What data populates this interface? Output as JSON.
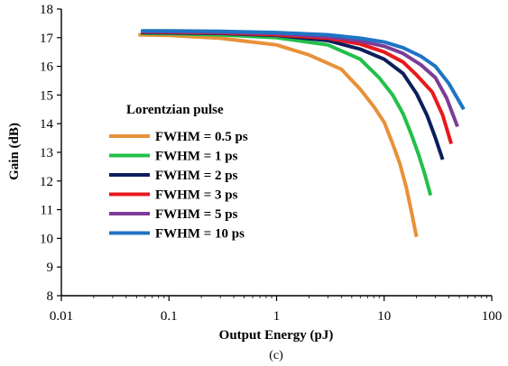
{
  "chart_data": {
    "type": "line",
    "title": "",
    "xlabel": "Output Energy (pJ)",
    "ylabel": "Gain (dB)",
    "x_scale": "log",
    "xlim": [
      0.01,
      100
    ],
    "ylim": [
      8,
      18
    ],
    "x_ticks": [
      "0.01",
      "0.1",
      "1",
      "10",
      "100"
    ],
    "y_ticks": [
      "8",
      "9",
      "10",
      "11",
      "12",
      "13",
      "14",
      "15",
      "16",
      "17",
      "18"
    ],
    "grid": false,
    "legend_title": "Lorentzian pulse",
    "legend_placement": "center-left",
    "caption": "(c)",
    "series": [
      {
        "name": "FWHM = 0.5 ps",
        "color": "#e8913a",
        "points": [
          [
            0.052,
            17.1
          ],
          [
            0.1,
            17.08
          ],
          [
            0.3,
            16.98
          ],
          [
            1,
            16.75
          ],
          [
            2,
            16.4
          ],
          [
            4,
            15.9
          ],
          [
            6,
            15.2
          ],
          [
            8,
            14.6
          ],
          [
            10,
            14.05
          ],
          [
            12,
            13.3
          ],
          [
            14,
            12.6
          ],
          [
            16,
            11.8
          ],
          [
            18,
            10.9
          ],
          [
            20,
            10.05
          ]
        ]
      },
      {
        "name": "FWHM = 1 ps",
        "color": "#22c04a",
        "points": [
          [
            0.055,
            17.15
          ],
          [
            0.1,
            17.14
          ],
          [
            0.3,
            17.1
          ],
          [
            1,
            17.0
          ],
          [
            3,
            16.75
          ],
          [
            6,
            16.25
          ],
          [
            9,
            15.6
          ],
          [
            12,
            15.0
          ],
          [
            15,
            14.35
          ],
          [
            18,
            13.6
          ],
          [
            21,
            12.9
          ],
          [
            24,
            12.2
          ],
          [
            27,
            11.5
          ]
        ]
      },
      {
        "name": "FWHM = 2 ps",
        "color": "#0c1f5c",
        "points": [
          [
            0.055,
            17.18
          ],
          [
            0.1,
            17.17
          ],
          [
            0.3,
            17.15
          ],
          [
            1,
            17.08
          ],
          [
            3,
            16.9
          ],
          [
            6,
            16.6
          ],
          [
            10,
            16.25
          ],
          [
            15,
            15.75
          ],
          [
            20,
            15.05
          ],
          [
            25,
            14.3
          ],
          [
            30,
            13.5
          ],
          [
            35,
            12.75
          ]
        ]
      },
      {
        "name": "FWHM = 3 ps",
        "color": "#e8191c",
        "points": [
          [
            0.055,
            17.2
          ],
          [
            0.1,
            17.19
          ],
          [
            0.3,
            17.17
          ],
          [
            1,
            17.1
          ],
          [
            3,
            16.98
          ],
          [
            6,
            16.78
          ],
          [
            10,
            16.5
          ],
          [
            15,
            16.15
          ],
          [
            20,
            15.7
          ],
          [
            28,
            15.1
          ],
          [
            35,
            14.3
          ],
          [
            42,
            13.3
          ]
        ]
      },
      {
        "name": "FWHM = 5 ps",
        "color": "#7d3c98",
        "points": [
          [
            0.055,
            17.22
          ],
          [
            0.1,
            17.21
          ],
          [
            0.3,
            17.19
          ],
          [
            1,
            17.14
          ],
          [
            3,
            17.03
          ],
          [
            6,
            16.88
          ],
          [
            10,
            16.7
          ],
          [
            15,
            16.45
          ],
          [
            22,
            16.05
          ],
          [
            30,
            15.6
          ],
          [
            38,
            14.9
          ],
          [
            48,
            13.9
          ]
        ]
      },
      {
        "name": "FWHM = 10 ps",
        "color": "#1f74c4",
        "points": [
          [
            0.055,
            17.24
          ],
          [
            0.1,
            17.24
          ],
          [
            0.3,
            17.22
          ],
          [
            1,
            17.18
          ],
          [
            3,
            17.1
          ],
          [
            6,
            16.98
          ],
          [
            10,
            16.85
          ],
          [
            15,
            16.65
          ],
          [
            22,
            16.35
          ],
          [
            30,
            16.0
          ],
          [
            40,
            15.4
          ],
          [
            55,
            14.5
          ]
        ]
      }
    ]
  }
}
